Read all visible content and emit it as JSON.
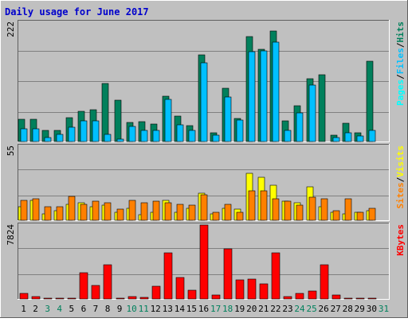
{
  "colors": {
    "background": "#c0c0c0",
    "plot_background": "#c0c0c0",
    "title": "#0000cc",
    "grid": "#808080",
    "hits": "#00805c",
    "files": "#00c0ff",
    "pages": "#00ffff",
    "visits": "#ffff00",
    "sites": "#ff8000",
    "kbytes": "#ff0000",
    "weekend_day": "#00805c",
    "weekday": "#000000"
  },
  "chart_data": [
    {
      "type": "bar",
      "title": "Daily usage for June 2017",
      "categories": [
        "1",
        "2",
        "3",
        "4",
        "5",
        "6",
        "7",
        "8",
        "9",
        "10",
        "11",
        "12",
        "13",
        "14",
        "15",
        "16",
        "17",
        "18",
        "19",
        "20",
        "21",
        "22",
        "23",
        "24",
        "25",
        "26",
        "27",
        "28",
        "29",
        "30",
        "31"
      ],
      "weekend_days": [
        "3",
        "4",
        "10",
        "11",
        "17",
        "18",
        "24",
        "25",
        "31"
      ],
      "ymax_label": "222",
      "ylim": [
        0,
        222
      ],
      "legend": [
        {
          "name": "Pages",
          "color": "#00ffff"
        },
        {
          "name": "Files",
          "color": "#00c0ff"
        },
        {
          "name": "Hits",
          "color": "#00805c"
        }
      ],
      "legend_separator": "/",
      "series": [
        {
          "name": "Hits",
          "values": [
            42,
            42,
            21,
            21,
            45,
            56,
            59,
            108,
            77,
            35,
            37,
            33,
            85,
            48,
            29,
            161,
            17,
            99,
            43,
            196,
            171,
            205,
            39,
            66,
            117,
            124,
            12,
            34,
            17,
            149,
            0
          ]
        },
        {
          "name": "Files",
          "values": [
            24,
            24,
            7,
            14,
            27,
            38,
            38,
            13,
            4,
            28,
            20,
            20,
            79,
            31,
            20,
            147,
            12,
            83,
            40,
            167,
            168,
            185,
            20,
            54,
            105,
            0,
            7,
            17,
            10,
            20,
            0
          ]
        },
        {
          "name": "Pages",
          "values": [
            0,
            0,
            0,
            0,
            0,
            0,
            0,
            0,
            0,
            0,
            0,
            0,
            0,
            0,
            0,
            0,
            0,
            0,
            0,
            0,
            0,
            0,
            0,
            0,
            0,
            0,
            0,
            0,
            0,
            0,
            0
          ]
        }
      ]
    },
    {
      "type": "bar",
      "categories": [
        "1",
        "2",
        "3",
        "4",
        "5",
        "6",
        "7",
        "8",
        "9",
        "10",
        "11",
        "12",
        "13",
        "14",
        "15",
        "16",
        "17",
        "18",
        "19",
        "20",
        "21",
        "22",
        "23",
        "24",
        "25",
        "26",
        "27",
        "28",
        "29",
        "30",
        "31"
      ],
      "ymax_label": "55",
      "ylim": [
        0,
        55
      ],
      "legend": [
        {
          "name": "Sites",
          "color": "#ff8000"
        },
        {
          "name": "Visits",
          "color": "#ffff00"
        }
      ],
      "legend_separator": "/",
      "series": [
        {
          "name": "Visits",
          "values": [
            10,
            15,
            5,
            7,
            12,
            13,
            10,
            11,
            6,
            9,
            4,
            6,
            15,
            6,
            9,
            20,
            5,
            9,
            8,
            35,
            32,
            26,
            14,
            13,
            25,
            10,
            6,
            5,
            6,
            7,
            0
          ]
        },
        {
          "name": "Sites",
          "values": [
            15,
            16,
            10,
            10,
            18,
            12,
            14,
            13,
            8,
            15,
            13,
            14,
            13,
            12,
            11,
            19,
            6,
            12,
            6,
            22,
            22,
            16,
            14,
            11,
            17,
            16,
            7,
            16,
            6,
            9,
            0
          ]
        }
      ]
    },
    {
      "type": "bar",
      "categories": [
        "1",
        "2",
        "3",
        "4",
        "5",
        "6",
        "7",
        "8",
        "9",
        "10",
        "11",
        "12",
        "13",
        "14",
        "15",
        "16",
        "17",
        "18",
        "19",
        "20",
        "21",
        "22",
        "23",
        "24",
        "25",
        "26",
        "27",
        "28",
        "29",
        "30",
        "31"
      ],
      "ymax_label": "7824",
      "ylim": [
        0,
        7824
      ],
      "legend": [
        {
          "name": "KBytes",
          "color": "#ff0000"
        }
      ],
      "series": [
        {
          "name": "KBytes",
          "values": [
            580,
            230,
            70,
            70,
            90,
            2800,
            1470,
            3640,
            120,
            260,
            130,
            1380,
            4910,
            2260,
            910,
            7824,
            420,
            5300,
            1990,
            2140,
            1560,
            4860,
            240,
            630,
            800,
            3620,
            440,
            80,
            90,
            90,
            0
          ]
        }
      ]
    }
  ]
}
